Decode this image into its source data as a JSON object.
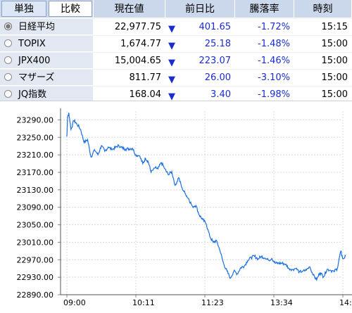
{
  "tabs": [
    {
      "label": "単独",
      "active": true
    },
    {
      "label": "比較",
      "active": false
    }
  ],
  "columns": {
    "price": "現在値",
    "change": "前日比",
    "rate": "騰落率",
    "time": "時刻"
  },
  "rows": [
    {
      "name": "日経平均",
      "price": "22,977.75",
      "change": "401.65",
      "rate": "-1.72%",
      "time": "15:15",
      "selected": true
    },
    {
      "name": "TOPIX",
      "price": "1,674.77",
      "change": "25.18",
      "rate": "-1.48%",
      "time": "15:00",
      "selected": false
    },
    {
      "name": "JPX400",
      "price": "15,004.65",
      "change": "223.07",
      "rate": "-1.46%",
      "time": "15:00",
      "selected": false
    },
    {
      "name": "マザーズ",
      "price": "811.77",
      "change": "26.00",
      "rate": "-3.10%",
      "time": "15:00",
      "selected": false
    },
    {
      "name": "JQ指数",
      "price": "168.04",
      "change": "3.40",
      "rate": "-1.98%",
      "time": "15:00",
      "selected": false
    }
  ],
  "change_glyph": "▼",
  "colors": {
    "header_bg": "#cbd7ea",
    "name_bg": "#e2e8f1",
    "change_text": "#1a2ccf",
    "line": "#1a6fe0"
  },
  "chart_data": {
    "type": "line",
    "y_ticks": [
      "23290.00",
      "23250.00",
      "23210.00",
      "23170.00",
      "23130.00",
      "23090.00",
      "23050.00",
      "23010.00",
      "22970.00",
      "22930.00",
      "22890.00"
    ],
    "x_ticks": [
      "09:00",
      "10:11",
      "11:23",
      "13:34",
      "14:"
    ],
    "ylim": [
      22890,
      23300
    ],
    "xlabel": "",
    "ylabel": "",
    "grid": true,
    "series": [
      {
        "values": [
          [
            0,
            23252
          ],
          [
            0.01,
            23295
          ],
          [
            0.03,
            23305
          ],
          [
            0.06,
            23268
          ],
          [
            0.1,
            23288
          ],
          [
            0.14,
            23282
          ],
          [
            0.2,
            23268
          ],
          [
            0.25,
            23238
          ],
          [
            0.3,
            23245
          ],
          [
            0.35,
            23205
          ],
          [
            0.4,
            23222
          ],
          [
            0.45,
            23210
          ],
          [
            0.5,
            23231
          ],
          [
            0.55,
            23218
          ],
          [
            0.6,
            23228
          ],
          [
            0.65,
            23222
          ],
          [
            0.7,
            23226
          ],
          [
            0.75,
            23232
          ],
          [
            0.8,
            23226
          ],
          [
            0.85,
            23223
          ],
          [
            0.9,
            23224
          ],
          [
            0.95,
            23225
          ],
          [
            1.0,
            23210
          ],
          [
            1.05,
            23208
          ],
          [
            1.1,
            23190
          ],
          [
            1.14,
            23202
          ],
          [
            1.18,
            23194
          ],
          [
            1.22,
            23170
          ],
          [
            1.28,
            23180
          ],
          [
            1.32,
            23178
          ],
          [
            1.37,
            23192
          ],
          [
            1.42,
            23178
          ],
          [
            1.47,
            23164
          ],
          [
            1.52,
            23172
          ],
          [
            1.57,
            23140
          ],
          [
            1.62,
            23158
          ],
          [
            1.67,
            23134
          ],
          [
            1.72,
            23120
          ],
          [
            1.77,
            23108
          ],
          [
            1.82,
            23092
          ],
          [
            1.87,
            23094
          ],
          [
            1.92,
            23072
          ],
          [
            1.97,
            23062
          ],
          [
            2.02,
            23052
          ],
          [
            2.07,
            23024
          ],
          [
            2.12,
            23010
          ],
          [
            2.17,
            23014
          ],
          [
            2.22,
            22990
          ],
          [
            2.27,
            22962
          ],
          [
            2.32,
            22944
          ],
          [
            2.37,
            22928
          ],
          [
            2.42,
            22944
          ],
          [
            2.47,
            22938
          ],
          [
            2.52,
            22952
          ],
          [
            2.57,
            22955
          ],
          [
            2.62,
            22968
          ],
          [
            2.67,
            22975
          ],
          [
            2.72,
            22978
          ],
          [
            2.77,
            22972
          ],
          [
            2.82,
            22978
          ],
          [
            2.87,
            22974
          ],
          [
            2.92,
            22969
          ],
          [
            2.97,
            22973
          ],
          [
            3.02,
            22962
          ],
          [
            3.07,
            22962
          ],
          [
            3.12,
            22962
          ],
          [
            3.17,
            22960
          ],
          [
            3.22,
            22950
          ],
          [
            3.27,
            22948
          ],
          [
            3.32,
            22950
          ],
          [
            3.37,
            22942
          ],
          [
            3.42,
            22944
          ],
          [
            3.47,
            22946
          ],
          [
            3.52,
            22954
          ],
          [
            3.57,
            22935
          ],
          [
            3.62,
            22924
          ],
          [
            3.67,
            22941
          ],
          [
            3.72,
            22931
          ],
          [
            3.77,
            22948
          ],
          [
            3.82,
            22946
          ],
          [
            3.87,
            22943
          ],
          [
            3.92,
            22950
          ],
          [
            3.97,
            22990
          ],
          [
            4.0,
            22972
          ],
          [
            4.04,
            22978
          ]
        ]
      }
    ]
  }
}
